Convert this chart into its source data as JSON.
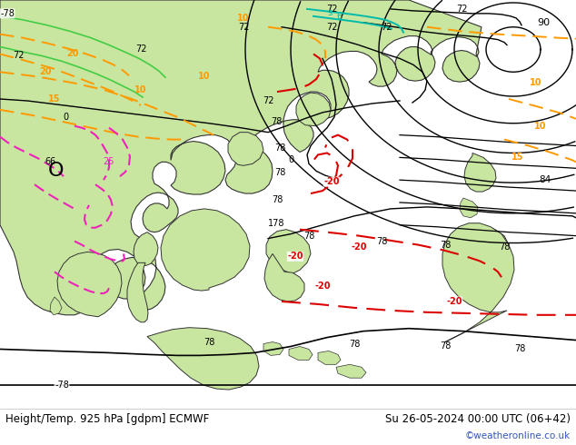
{
  "title_left": "Height/Temp. 925 hPa [gdpm] ECMWF",
  "title_right": "Su 26-05-2024 00:00 UTC (06+42)",
  "credit": "©weatheronline.co.uk",
  "bg_color": "#ffffff",
  "ocean_color": "#d8e8d8",
  "land_color": "#c8e6a0",
  "border_color": "#333333",
  "gray_border": "#aaaaaa",
  "bottom_text_color": "#000000",
  "credit_color": "#3355bb",
  "fig_width": 6.34,
  "fig_height": 4.9,
  "dpi": 100,
  "orange_color": "#ff9900",
  "red_color": "#dd0000",
  "pink_color": "#ee22bb",
  "cyan_color": "#00bbaa",
  "green_color": "#44cc44",
  "black_color": "#000000"
}
